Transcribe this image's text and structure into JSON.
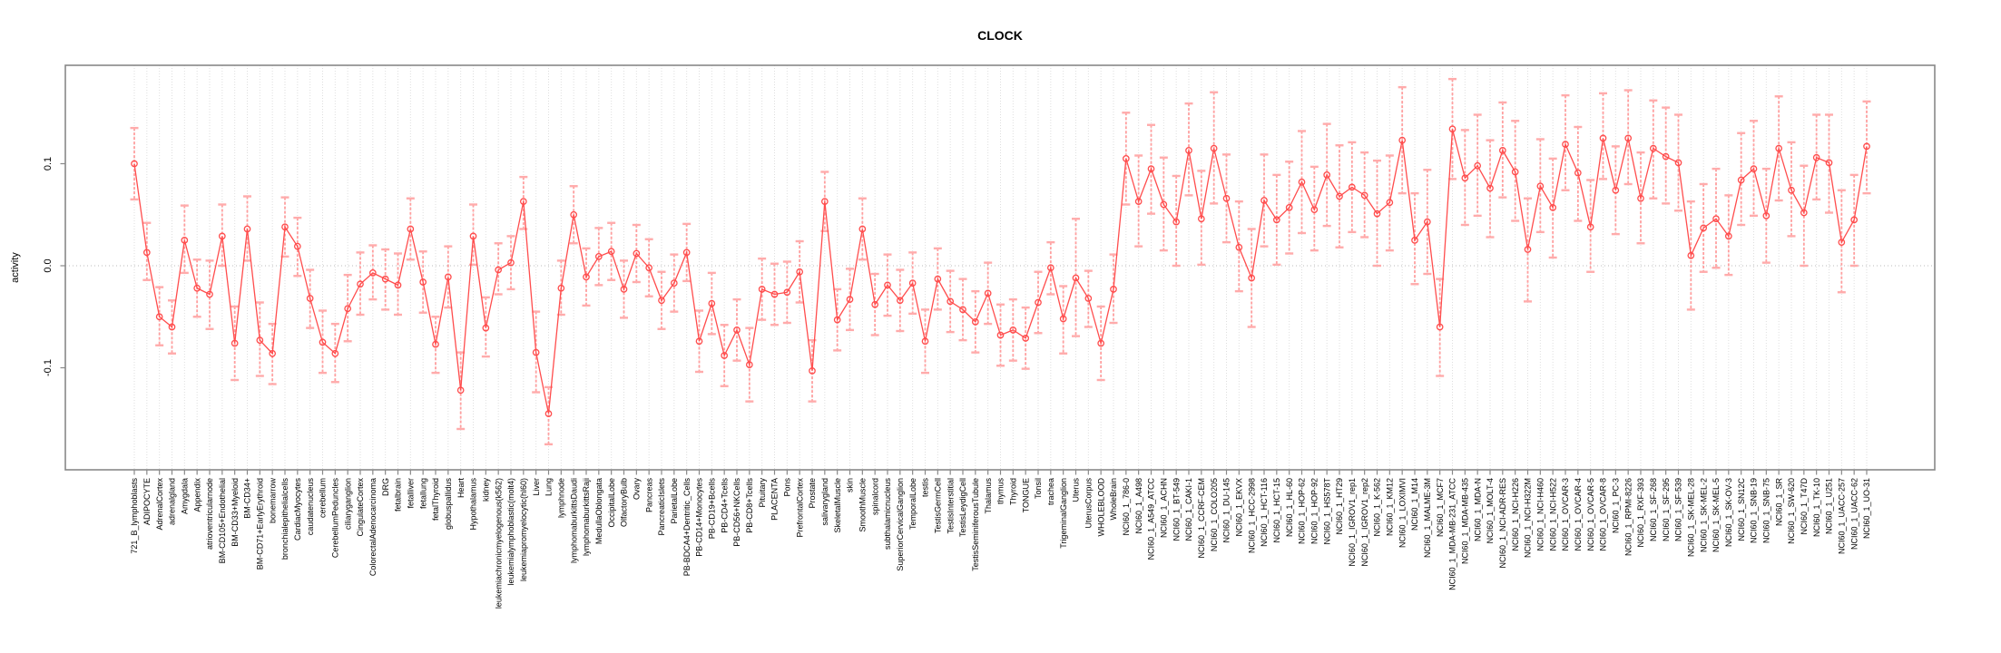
{
  "page": {
    "title": "CLOCK"
  },
  "chart_data": {
    "type": "line",
    "title": "CLOCK",
    "xlabel": "",
    "ylabel": "activity",
    "ylim": [
      -0.2,
      0.2
    ],
    "yticks": [
      -0.1,
      0.0,
      0.1
    ],
    "ytick_labels": [
      "-0.1",
      "0.0",
      "0.1"
    ],
    "grid": "vertical-dashed",
    "zero_line": true,
    "legend_position": "none",
    "colors": {
      "point": "#ff4d4d",
      "line": "#ff4d4d",
      "error_bar": "#ff9f9f",
      "error_cap": "#ffabab",
      "grid": "#dedede",
      "zero_line": "#bbbbbb",
      "box": "#888888",
      "text": "#000000"
    },
    "categories": [
      "721_B_lymphoblasts",
      "ADIPOCYTE",
      "AdrenalCortex",
      "adrenalgland",
      "Amygdala",
      "Appendix",
      "atrioventricularnode",
      "BM-CD105+Endothelial",
      "BM-CD33+Myeloid",
      "BM-CD34+",
      "BM-CD71+EarlyErythroid",
      "bonemarrow",
      "bronchialepithelialcells",
      "CardiacMyocytes",
      "caudatenucleus",
      "cerebellum",
      "CerebellumPeduncles",
      "ciliaryganglion",
      "CingulateCortex",
      "ColorectalAdenocarcinoma",
      "DRG",
      "fetalbrain",
      "fetalliver",
      "fetallung",
      "fetalThyroid",
      "globuspallidus",
      "Heart",
      "Hypothalamus",
      "kidney",
      "leukemiachronicmyelogenous(k562)",
      "leukemialymphoblastic(molt4)",
      "leukemiapromyelocytic(hl60)",
      "Liver",
      "Lung",
      "lymphnode",
      "lymphomaburkittsDaudi",
      "lymphomaburkittsRaji",
      "MedullaOblongata",
      "OccipitalLobe",
      "OlfactoryBulb",
      "Ovary",
      "Pancreas",
      "PancreaticIslets",
      "ParietalLobe",
      "PB-BDCA4+Dentritic_Cells",
      "PB-CD14+Monocytes",
      "PB-CD19+Bcells",
      "PB-CD4+Tcells",
      "PB-CD56+NKCells",
      "PB-CD8+Tcells",
      "Pituitary",
      "PLACENTA",
      "Pons",
      "PrefrontalCortex",
      "Prostate",
      "salivarygland",
      "SkeletalMuscle",
      "skin",
      "SmoothMuscle",
      "spinalcord",
      "subthalamicnucleus",
      "SuperiorCervicalGanglion",
      "TemporalLobe",
      "testis",
      "TestisGermCell",
      "TestisInterstitial",
      "TestisLeydigCell",
      "TestisSeminiferousTubule",
      "Thalamus",
      "thymus",
      "Thyroid",
      "TONGUE",
      "Tonsil",
      "trachea",
      "TrigeminalGanglion",
      "Uterus",
      "UterusCorpus",
      "WHOLEBLOOD",
      "WholeBrain",
      "NCI60_1_786-0",
      "NCI60_1_A498",
      "NCI60_1_A549_ATCC",
      "NCI60_1_ACHN",
      "NCI60_1_BT-549",
      "NCI60_1_CAKI-1",
      "NCI60_1_CCRF-CEM",
      "NCI60_1_COLO205",
      "NCI60_1_DU-145",
      "NCI60_1_EKVX",
      "NCI60_1_HCC-2998",
      "NCI60_1_HCT-116",
      "NCI60_1_HCT-15",
      "NCI60_1_HL-60",
      "NCI60_1_HOP-62",
      "NCI60_1_HOP-92",
      "NCI60_1_HS578T",
      "NCI60_1_HT29",
      "NCI60_1_IGROV1_rep1",
      "NCI60_1_IGROV1_rep2",
      "NCI60_1_K-562",
      "NCI60_1_KM12",
      "NCI60_1_LOXIMVI",
      "NCI60_1_M14",
      "NCI60_1_MALME-3M",
      "NCI60_1_MCF7",
      "NCI60_1_MDA-MB-231_ATCC",
      "NCI60_1_MDA-MB-435",
      "NCI60_1_MDA-N",
      "NCI60_1_MOLT-4",
      "NCI60_1_NCI-ADR-RES",
      "NCI60_1_NCI-H226",
      "NCI60_1_NCI-H322M",
      "NCI60_1_NCI-H460",
      "NCI60_1_NCI-H522",
      "NCI60_1_OVCAR-3",
      "NCI60_1_OVCAR-4",
      "NCI60_1_OVCAR-5",
      "NCI60_1_OVCAR-8",
      "NCI60_1_PC-3",
      "NCI60_1_RPMI-8226",
      "NCI60_1_RXF-393",
      "NCI60_1_SF-268",
      "NCI60_1_SF-295",
      "NCI60_1_SF-539",
      "NCI60_1_SK-MEL-28",
      "NCI60_1_SK-MEL-2",
      "NCI60_1_SK-MEL-5",
      "NCI60_1_SK-OV-3",
      "NCI60_1_SN12C",
      "NCI60_1_SNB-19",
      "NCI60_1_SNB-75",
      "NCI60_1_SR",
      "NCI60_1_SW-620",
      "NCI60_1_T47D",
      "NCI60_1_TK-10",
      "NCI60_1_U251",
      "NCI60_1_UACC-257",
      "NCI60_1_UACC-62",
      "NCI60_1_UO-31"
    ],
    "values": [
      0.1,
      0.013,
      -0.05,
      -0.06,
      0.025,
      -0.022,
      -0.028,
      0.029,
      -0.076,
      0.036,
      -0.073,
      -0.086,
      0.038,
      0.019,
      -0.032,
      -0.075,
      -0.086,
      -0.042,
      -0.018,
      -0.007,
      -0.013,
      -0.019,
      0.036,
      -0.016,
      -0.077,
      -0.011,
      -0.122,
      0.029,
      -0.061,
      -0.004,
      0.003,
      0.063,
      -0.085,
      -0.145,
      -0.022,
      0.05,
      -0.011,
      0.009,
      0.014,
      -0.023,
      0.012,
      -0.002,
      -0.034,
      -0.017,
      0.013,
      -0.074,
      -0.037,
      -0.088,
      -0.063,
      -0.097,
      -0.023,
      -0.028,
      -0.026,
      -0.006,
      -0.103,
      0.063,
      -0.053,
      -0.033,
      0.036,
      -0.038,
      -0.019,
      -0.034,
      -0.017,
      -0.074,
      -0.013,
      -0.035,
      -0.043,
      -0.055,
      -0.027,
      -0.068,
      -0.063,
      -0.071,
      -0.036,
      -0.002,
      -0.052,
      -0.012,
      -0.032,
      -0.076,
      -0.023,
      0.105,
      0.063,
      0.095,
      0.06,
      0.043,
      0.113,
      0.046,
      0.115,
      0.066,
      0.018,
      -0.012,
      0.064,
      0.045,
      0.057,
      0.082,
      0.055,
      0.089,
      0.068,
      0.077,
      0.069,
      0.051,
      0.062,
      0.123,
      0.025,
      0.043,
      -0.06,
      0.134,
      0.086,
      0.098,
      0.076,
      0.113,
      0.092,
      0.016,
      0.078,
      0.057,
      0.119,
      0.091,
      0.038,
      0.125,
      0.074,
      0.125,
      0.066,
      0.115,
      0.107,
      0.101,
      0.01,
      0.037,
      0.046,
      0.029,
      0.084,
      0.095,
      0.049,
      0.115,
      0.074,
      0.052,
      0.106,
      0.101,
      0.023,
      0.045,
      0.117
    ],
    "err_low": [
      0.065,
      -0.014,
      -0.078,
      -0.086,
      -0.007,
      -0.05,
      -0.062,
      0.0,
      -0.112,
      0.005,
      -0.108,
      -0.116,
      0.009,
      -0.01,
      -0.061,
      -0.105,
      -0.114,
      -0.074,
      -0.048,
      -0.033,
      -0.043,
      -0.048,
      0.006,
      -0.046,
      -0.105,
      -0.041,
      -0.16,
      0.001,
      -0.089,
      -0.028,
      -0.023,
      0.036,
      -0.124,
      -0.175,
      -0.048,
      0.022,
      -0.039,
      -0.019,
      -0.014,
      -0.051,
      -0.016,
      -0.03,
      -0.062,
      -0.045,
      -0.015,
      -0.104,
      -0.067,
      -0.118,
      -0.093,
      -0.133,
      -0.053,
      -0.058,
      -0.056,
      -0.036,
      -0.133,
      0.034,
      -0.083,
      -0.063,
      0.006,
      -0.068,
      -0.049,
      -0.064,
      -0.047,
      -0.105,
      -0.043,
      -0.065,
      -0.073,
      -0.085,
      -0.057,
      -0.098,
      -0.093,
      -0.101,
      -0.066,
      -0.028,
      -0.086,
      -0.069,
      -0.06,
      -0.112,
      -0.056,
      0.06,
      0.019,
      0.051,
      0.015,
      0.0,
      0.069,
      0.001,
      0.061,
      0.023,
      -0.025,
      -0.06,
      0.019,
      0.001,
      0.012,
      0.032,
      0.015,
      0.039,
      0.018,
      0.033,
      0.028,
      0.0,
      0.015,
      0.071,
      -0.018,
      -0.008,
      -0.108,
      0.085,
      0.04,
      0.049,
      0.028,
      0.067,
      0.044,
      -0.035,
      0.033,
      0.008,
      0.074,
      0.044,
      -0.006,
      0.085,
      0.031,
      0.08,
      0.022,
      0.066,
      0.061,
      0.054,
      -0.043,
      -0.006,
      -0.002,
      -0.009,
      0.04,
      0.049,
      0.003,
      0.064,
      0.029,
      0.0,
      0.065,
      0.052,
      -0.026,
      0.0,
      0.071
    ],
    "err_high": [
      0.135,
      0.042,
      -0.021,
      -0.034,
      0.059,
      0.006,
      0.005,
      0.06,
      -0.04,
      0.068,
      -0.036,
      -0.057,
      0.067,
      0.047,
      -0.004,
      -0.044,
      -0.057,
      -0.009,
      0.013,
      0.02,
      0.016,
      0.012,
      0.066,
      0.014,
      -0.05,
      0.019,
      -0.085,
      0.06,
      -0.031,
      0.022,
      0.029,
      0.087,
      -0.045,
      -0.119,
      0.005,
      0.078,
      0.017,
      0.037,
      0.042,
      0.005,
      0.04,
      0.026,
      -0.006,
      0.011,
      0.041,
      -0.044,
      -0.007,
      -0.058,
      -0.033,
      -0.061,
      0.007,
      0.002,
      0.004,
      0.024,
      -0.073,
      0.092,
      -0.023,
      -0.003,
      0.066,
      -0.008,
      0.011,
      -0.004,
      0.013,
      -0.043,
      0.017,
      -0.005,
      -0.013,
      -0.025,
      0.003,
      -0.038,
      -0.033,
      -0.041,
      -0.006,
      0.023,
      -0.02,
      0.046,
      -0.005,
      -0.04,
      0.011,
      0.15,
      0.108,
      0.138,
      0.106,
      0.088,
      0.159,
      0.093,
      0.17,
      0.109,
      0.063,
      0.036,
      0.109,
      0.089,
      0.102,
      0.132,
      0.097,
      0.139,
      0.118,
      0.121,
      0.111,
      0.103,
      0.108,
      0.175,
      0.071,
      0.094,
      -0.013,
      0.183,
      0.133,
      0.148,
      0.123,
      0.16,
      0.142,
      0.066,
      0.124,
      0.105,
      0.167,
      0.136,
      0.084,
      0.169,
      0.117,
      0.172,
      0.111,
      0.162,
      0.155,
      0.148,
      0.063,
      0.08,
      0.095,
      0.069,
      0.13,
      0.142,
      0.095,
      0.166,
      0.121,
      0.098,
      0.148,
      0.148,
      0.074,
      0.089,
      0.161
    ]
  }
}
